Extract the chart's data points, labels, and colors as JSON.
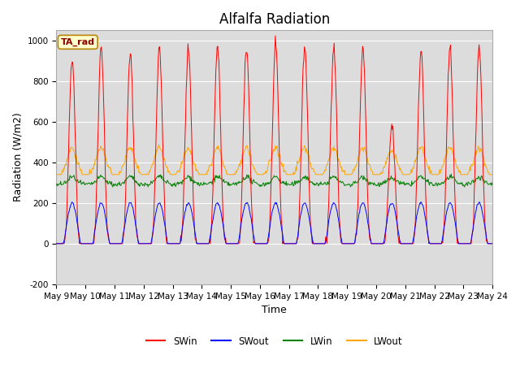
{
  "title": "Alfalfa Radiation",
  "xlabel": "Time",
  "ylabel": "Radiation (W/m2)",
  "ylim": [
    -200,
    1050
  ],
  "n_days": 15,
  "xtick_labels": [
    "May 9",
    "May 10",
    "May 11",
    "May 12",
    "May 13",
    "May 14",
    "May 15",
    "May 16",
    "May 17",
    "May 18",
    "May 19",
    "May 20",
    "May 21",
    "May 22",
    "May 23",
    "May 24"
  ],
  "ytick_values": [
    -200,
    0,
    200,
    400,
    600,
    800,
    1000
  ],
  "legend_label": "TA_rad",
  "series": [
    "SWin",
    "SWout",
    "LWin",
    "LWout"
  ],
  "colors": [
    "red",
    "blue",
    "green",
    "orange"
  ],
  "bg_color": "#dcdcdc",
  "title_fontsize": 12,
  "axis_label_fontsize": 9,
  "tick_fontsize": 7.5
}
